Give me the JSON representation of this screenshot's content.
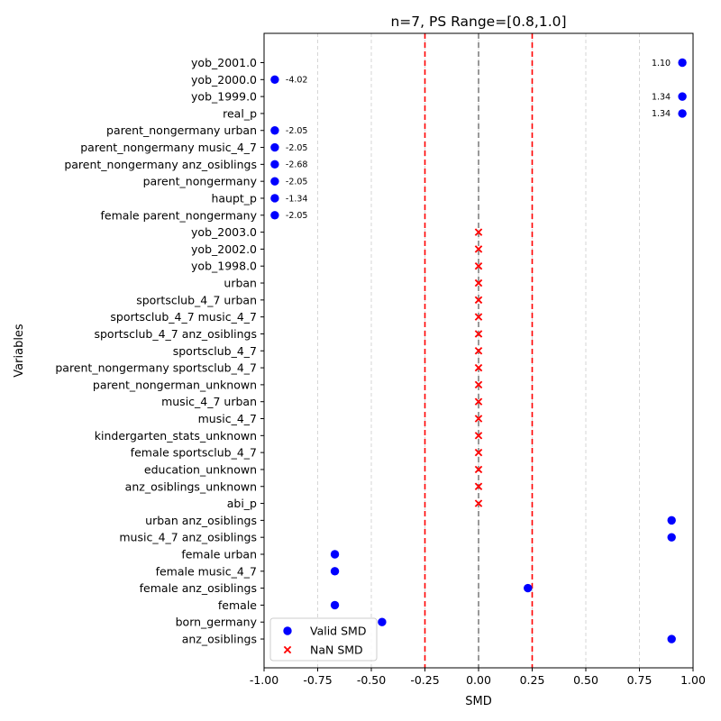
{
  "chart_data": {
    "type": "scatter",
    "title": "n=7, PS Range=[0.8,1.0]",
    "xlabel": "SMD",
    "ylabel": "Variables",
    "xlim": [
      -1.0,
      1.0
    ],
    "x_ticks": [
      "-1.00",
      "-0.75",
      "-0.50",
      "-0.25",
      "0.00",
      "0.25",
      "0.50",
      "0.75",
      "1.00"
    ],
    "x_tick_values": [
      -1.0,
      -0.75,
      -0.5,
      -0.25,
      0.0,
      0.25,
      0.5,
      0.75,
      1.0
    ],
    "grid": "vertical dashed",
    "threshold_lines": [
      -0.25,
      0.25
    ],
    "zero_line": 0.0,
    "colors": {
      "valid": "#0000ff",
      "nan": "#ff0000",
      "threshold": "#ff0000",
      "zero": "#808080",
      "grid": "#cccccc"
    },
    "legend": {
      "position": "lower-left",
      "entries": [
        {
          "label": "Valid SMD",
          "marker": "circle",
          "color": "#0000ff"
        },
        {
          "label": "NaN SMD",
          "marker": "x",
          "color": "#ff0000"
        }
      ]
    },
    "variables": [
      "yob_2001.0",
      "yob_2000.0",
      "yob_1999.0",
      "real_p",
      "parent_nongermany urban",
      "parent_nongermany music_4_7",
      "parent_nongermany anz_osiblings",
      "parent_nongermany",
      "haupt_p",
      "female parent_nongermany",
      "yob_2003.0",
      "yob_2002.0",
      "yob_1998.0",
      "urban",
      "sportsclub_4_7 urban",
      "sportsclub_4_7 music_4_7",
      "sportsclub_4_7 anz_osiblings",
      "sportsclub_4_7",
      "parent_nongermany sportsclub_4_7",
      "parent_nongerman_unknown",
      "music_4_7 urban",
      "music_4_7",
      "kindergarten_stats_unknown",
      "female sportsclub_4_7",
      "education_unknown",
      "anz_osiblings_unknown",
      "abi_p",
      "urban anz_osiblings",
      "music_4_7 anz_osiblings",
      "female urban",
      "female music_4_7",
      "female anz_osiblings",
      "female",
      "born_germany",
      "anz_osiblings"
    ],
    "valid_points": [
      {
        "variable": "yob_2001.0",
        "x": 0.95,
        "label": "1.10"
      },
      {
        "variable": "yob_2000.0",
        "x": -0.95,
        "label": "-4.02"
      },
      {
        "variable": "yob_1999.0",
        "x": 0.95,
        "label": "1.34"
      },
      {
        "variable": "real_p",
        "x": 0.95,
        "label": "1.34"
      },
      {
        "variable": "parent_nongermany urban",
        "x": -0.95,
        "label": "-2.05"
      },
      {
        "variable": "parent_nongermany music_4_7",
        "x": -0.95,
        "label": "-2.05"
      },
      {
        "variable": "parent_nongermany anz_osiblings",
        "x": -0.95,
        "label": "-2.68"
      },
      {
        "variable": "parent_nongermany",
        "x": -0.95,
        "label": "-2.05"
      },
      {
        "variable": "haupt_p",
        "x": -0.95,
        "label": "-1.34"
      },
      {
        "variable": "female parent_nongermany",
        "x": -0.95,
        "label": "-2.05"
      },
      {
        "variable": "urban anz_osiblings",
        "x": 0.9
      },
      {
        "variable": "music_4_7 anz_osiblings",
        "x": 0.9
      },
      {
        "variable": "female urban",
        "x": -0.67
      },
      {
        "variable": "female music_4_7",
        "x": -0.67
      },
      {
        "variable": "female anz_osiblings",
        "x": 0.23
      },
      {
        "variable": "female",
        "x": -0.67
      },
      {
        "variable": "born_germany",
        "x": -0.45
      },
      {
        "variable": "anz_osiblings",
        "x": 0.9
      }
    ],
    "nan_points": [
      {
        "variable": "yob_2003.0",
        "x": 0.0
      },
      {
        "variable": "yob_2002.0",
        "x": 0.0
      },
      {
        "variable": "yob_1998.0",
        "x": 0.0
      },
      {
        "variable": "urban",
        "x": 0.0
      },
      {
        "variable": "sportsclub_4_7 urban",
        "x": 0.0
      },
      {
        "variable": "sportsclub_4_7 music_4_7",
        "x": 0.0
      },
      {
        "variable": "sportsclub_4_7 anz_osiblings",
        "x": 0.0
      },
      {
        "variable": "sportsclub_4_7",
        "x": 0.0
      },
      {
        "variable": "parent_nongermany sportsclub_4_7",
        "x": 0.0
      },
      {
        "variable": "parent_nongerman_unknown",
        "x": 0.0
      },
      {
        "variable": "music_4_7 urban",
        "x": 0.0
      },
      {
        "variable": "music_4_7",
        "x": 0.0
      },
      {
        "variable": "kindergarten_stats_unknown",
        "x": 0.0
      },
      {
        "variable": "female sportsclub_4_7",
        "x": 0.0
      },
      {
        "variable": "education_unknown",
        "x": 0.0
      },
      {
        "variable": "anz_osiblings_unknown",
        "x": 0.0
      },
      {
        "variable": "abi_p",
        "x": 0.0
      }
    ]
  }
}
